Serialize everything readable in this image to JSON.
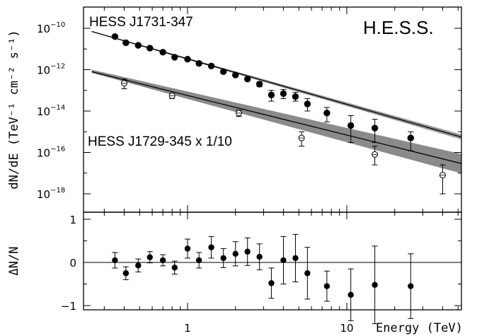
{
  "chart_data": [
    {
      "type": "scatter",
      "title": "",
      "watermark_label": "H.E.S.S.",
      "ylabel": "dN/dE (TeV⁻¹ cm⁻² s⁻¹)",
      "xscale": "log",
      "yscale": "log",
      "xlim": [
        0.25,
        80
      ],
      "ylim": [
        3e-19,
        2e-10
      ],
      "x_ticks": [
        "1",
        "10"
      ],
      "y_ticks": [
        {
          "base": "10",
          "exp": "−10"
        },
        {
          "base": "10",
          "exp": "−12"
        },
        {
          "base": "10",
          "exp": "−14"
        },
        {
          "base": "10",
          "exp": "−16"
        },
        {
          "base": "10",
          "exp": "−18"
        }
      ],
      "series": [
        {
          "name": "HESS J1731-347",
          "marker": "filled-circle",
          "x": [
            0.35,
            0.41,
            0.49,
            0.58,
            0.7,
            0.83,
            1.0,
            1.18,
            1.41,
            1.68,
            2.0,
            2.38,
            2.83,
            3.36,
            4.0,
            4.76,
            5.66,
            7.5,
            10.6,
            15.0,
            25.2
          ],
          "y": [
            4e-11,
            2e-11,
            1.5e-11,
            1.1e-11,
            7e-12,
            4e-12,
            3.2e-12,
            2e-12,
            1.5e-12,
            8e-13,
            5.5e-13,
            3.5e-13,
            2e-13,
            6e-14,
            7e-14,
            5e-14,
            2.2e-14,
            8e-15,
            2e-15,
            1.5e-15,
            5e-16
          ],
          "y_low": [
            4e-11,
            2e-11,
            1.5e-11,
            1.1e-11,
            7e-12,
            4e-12,
            3.2e-12,
            2e-12,
            1.5e-12,
            8e-13,
            5.5e-13,
            3.5e-13,
            1.5e-13,
            3e-14,
            4e-14,
            3e-14,
            1e-14,
            3e-15,
            3e-16,
            3e-16,
            1.2e-16
          ],
          "y_high": [
            4e-11,
            2e-11,
            1.5e-11,
            1.1e-11,
            7e-12,
            4e-12,
            3.2e-12,
            2e-12,
            1.5e-12,
            8e-13,
            5.5e-13,
            3.5e-13,
            2.6e-13,
            1e-13,
            1.1e-13,
            8e-14,
            4e-14,
            1.5e-14,
            6e-15,
            4e-15,
            1e-15
          ],
          "fit": {
            "x": [
              0.25,
              80
            ],
            "y": [
              7e-11,
              2.2e-16
            ]
          }
        },
        {
          "name": "HESS J1729-345 x 1/10",
          "marker": "open-circle",
          "x": [
            0.4,
            0.8,
            2.1,
            5.2,
            15.0,
            40.0
          ],
          "y": [
            2.2e-13,
            5.5e-14,
            8e-15,
            5e-16,
            8e-17,
            8e-18
          ],
          "y_low": [
            1.2e-13,
            4e-14,
            5.5e-15,
            2e-16,
            2.5e-17,
            1e-18
          ],
          "y_high": [
            3.5e-13,
            7e-14,
            1.1e-14,
            1e-15,
            2e-16,
            2.5e-17
          ],
          "fit": {
            "x": [
              0.25,
              80
            ],
            "y": [
              8e-13,
              1.3e-17
            ]
          },
          "band_high": [
            1e-12,
            4e-17
          ],
          "band_low": [
            7e-13,
            4e-18
          ]
        }
      ]
    },
    {
      "type": "scatter",
      "title": "",
      "xlabel": "Energy (TeV)",
      "ylabel": "ΔN/N",
      "xscale": "log",
      "xlim": [
        0.25,
        80
      ],
      "ylim": [
        -1.1,
        1.1
      ],
      "x_ticks": [
        "1",
        "10"
      ],
      "y_ticks": [
        "1",
        "0",
        "−1"
      ],
      "reference_line": 0,
      "series": [
        {
          "name": "",
          "marker": "filled-circle",
          "x": [
            0.35,
            0.41,
            0.49,
            0.58,
            0.7,
            0.83,
            1.0,
            1.18,
            1.41,
            1.68,
            2.0,
            2.38,
            2.83,
            3.36,
            4.0,
            4.76,
            5.66,
            7.5,
            10.6,
            15.0,
            25.2
          ],
          "y": [
            0.05,
            -0.25,
            -0.07,
            0.12,
            0.05,
            -0.12,
            0.32,
            0.05,
            0.35,
            0.1,
            0.2,
            0.25,
            0.13,
            -0.48,
            0.05,
            0.1,
            -0.25,
            -0.55,
            -0.75,
            -0.52,
            -0.55
          ],
          "err": [
            0.18,
            0.15,
            0.15,
            0.13,
            0.13,
            0.15,
            0.22,
            0.18,
            0.25,
            0.22,
            0.28,
            0.32,
            0.3,
            0.35,
            0.55,
            0.55,
            0.6,
            0.35,
            0.6,
            0.9,
            0.75
          ]
        }
      ]
    }
  ]
}
